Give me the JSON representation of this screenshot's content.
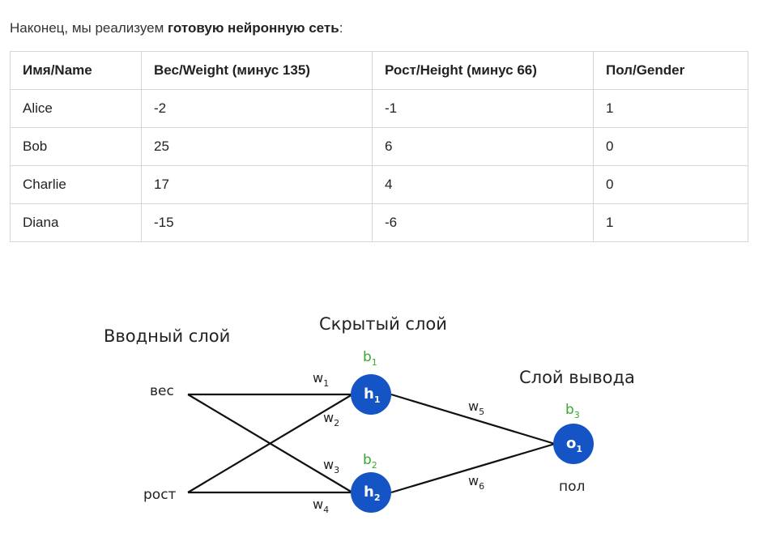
{
  "intro": {
    "prefix": "Наконец, мы реализуем ",
    "bold": "готовую нейронную сеть",
    "suffix": ":"
  },
  "table": {
    "headers": [
      "Имя/Name",
      "Вес/Weight (минус 135)",
      "Рост/Height (минус 66)",
      "Пол/Gender"
    ],
    "rows": [
      [
        "Alice",
        "-2",
        "-1",
        "1"
      ],
      [
        "Bob",
        "25",
        "6",
        "0"
      ],
      [
        "Charlie",
        "17",
        "4",
        "0"
      ],
      [
        "Diana",
        "-15",
        "-6",
        "1"
      ]
    ]
  },
  "network": {
    "input_layer_title": "Вводный слой",
    "hidden_layer_title": "Скрытый слой",
    "output_layer_title": "Слой вывода",
    "inputs": [
      "вес",
      "рост"
    ],
    "output_label": "пол",
    "nodes": [
      {
        "letter": "h",
        "index": "1"
      },
      {
        "letter": "h",
        "index": "2"
      },
      {
        "letter": "o",
        "index": "1"
      }
    ],
    "biases": [
      {
        "letter": "b",
        "index": "1"
      },
      {
        "letter": "b",
        "index": "2"
      },
      {
        "letter": "b",
        "index": "3"
      }
    ],
    "weights": [
      {
        "letter": "w",
        "index": "1"
      },
      {
        "letter": "w",
        "index": "2"
      },
      {
        "letter": "w",
        "index": "3"
      },
      {
        "letter": "w",
        "index": "4"
      },
      {
        "letter": "w",
        "index": "5"
      },
      {
        "letter": "w",
        "index": "6"
      }
    ],
    "colors": {
      "node": "#1554c4",
      "node_text": "#ffffff",
      "bias": "#3aa830",
      "edge": "#111111"
    }
  }
}
